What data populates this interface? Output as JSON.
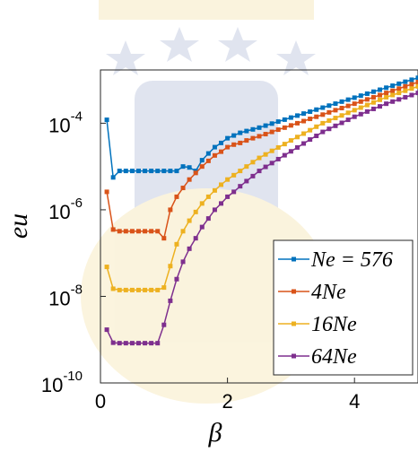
{
  "chart_data": {
    "type": "line",
    "yscale": "log",
    "xlabel": "β",
    "ylabel": "eu",
    "legend": "lower right",
    "xlim": [
      0,
      5
    ],
    "ylim": [
      1e-10,
      0.0017
    ],
    "xticks": [
      0,
      2,
      4
    ],
    "yticks": [
      {
        "value": 1e-10,
        "base": "10",
        "exponent": "-10"
      },
      {
        "value": 1e-08,
        "base": "10",
        "exponent": "-8"
      },
      {
        "value": 1e-06,
        "base": "10",
        "exponent": "-6"
      },
      {
        "value": 0.0001,
        "base": "10",
        "exponent": "-4"
      }
    ],
    "x": [
      0.1,
      0.2,
      0.3,
      0.4,
      0.5,
      0.6,
      0.7,
      0.8,
      0.9,
      1.0,
      1.1,
      1.2,
      1.3,
      1.4,
      1.5,
      1.6,
      1.7,
      1.8,
      1.9,
      2.0,
      2.1,
      2.2,
      2.3,
      2.4,
      2.5,
      2.6,
      2.7,
      2.8,
      2.9,
      3.0,
      3.1,
      3.2,
      3.3,
      3.4,
      3.5,
      3.6,
      3.7,
      3.8,
      3.9,
      4.0,
      4.1,
      4.2,
      4.3,
      4.4,
      4.5,
      4.6,
      4.7,
      4.8,
      4.9,
      5.0
    ],
    "series": [
      {
        "name": "Ne = 576",
        "color": "#0072BD",
        "values": [
          0.00012,
          5.6e-06,
          7.9e-06,
          7.9e-06,
          7.9e-06,
          7.9e-06,
          7.9e-06,
          7.9e-06,
          7.9e-06,
          7.9e-06,
          7.9e-06,
          7.9e-06,
          1e-05,
          9.5e-06,
          7.9e-06,
          1.4e-05,
          2e-05,
          2.8e-05,
          3.5e-05,
          4.5e-05,
          5.2e-05,
          6e-05,
          6.6e-05,
          7.2e-05,
          7.9e-05,
          8.8e-05,
          9.8e-05,
          0.000109,
          0.000121,
          0.000135,
          0.00015,
          0.000167,
          0.000185,
          0.000206,
          0.000229,
          0.000255,
          0.000283,
          0.000315,
          0.00035,
          0.000389,
          0.000433,
          0.000481,
          0.000535,
          0.000594,
          0.000661,
          0.000735,
          0.000817,
          0.000908,
          0.00101,
          0.00112
        ]
      },
      {
        "name": "4Ne",
        "color": "#D95319",
        "values": [
          2.6e-06,
          3.5e-07,
          3.2e-07,
          3.2e-07,
          3.2e-07,
          3.2e-07,
          3.2e-07,
          3.2e-07,
          3.2e-07,
          2.2e-07,
          1e-06,
          2e-06,
          3.2e-06,
          5e-06,
          7.1e-06,
          1e-05,
          1.35e-05,
          1.8e-05,
          2.2e-05,
          2.8e-05,
          3.2e-05,
          3.5e-05,
          4e-05,
          4.5e-05,
          5e-05,
          5.6e-05,
          6.3e-05,
          7.1e-05,
          7.9e-05,
          8.9e-05,
          0.0001,
          0.000112,
          0.000126,
          0.000141,
          0.000158,
          0.000178,
          0.0002,
          0.000224,
          0.000251,
          0.000282,
          0.000316,
          0.000355,
          0.000398,
          0.000447,
          0.000501,
          0.000562,
          0.000631,
          0.000708,
          0.000794,
          0.000891
        ]
      },
      {
        "name": "16Ne",
        "color": "#EDB120",
        "values": [
          4.8e-08,
          1.5e-08,
          1.4e-08,
          1.4e-08,
          1.4e-08,
          1.4e-08,
          1.4e-08,
          1.4e-08,
          1.4e-08,
          1.6e-08,
          5e-08,
          1.6e-07,
          3.2e-07,
          5.6e-07,
          8.9e-07,
          1.4e-06,
          2e-06,
          2.8e-06,
          3.8e-06,
          5e-06,
          6.3e-06,
          7.9e-06,
          1e-05,
          1.26e-05,
          1.58e-05,
          1.9e-05,
          2.3e-05,
          2.75e-05,
          3.3e-05,
          4e-05,
          4.8e-05,
          5.75e-05,
          6.9e-05,
          8.3e-05,
          0.0001,
          0.000115,
          0.000132,
          0.000151,
          0.000174,
          0.0002,
          0.000229,
          0.000263,
          0.000302,
          0.000347,
          0.000398,
          0.000447,
          0.000501,
          0.000562,
          0.000631,
          0.000708
        ]
      },
      {
        "name": "64Ne",
        "color": "#7E2F8E",
        "values": [
          1.7e-09,
          8.5e-10,
          8.3e-10,
          8.3e-10,
          8.3e-10,
          8.3e-10,
          8.3e-10,
          8.3e-10,
          8.3e-10,
          2.2e-09,
          7.9e-09,
          2.5e-08,
          6.3e-08,
          1.26e-07,
          2.2e-07,
          4e-07,
          6.3e-07,
          1e-06,
          1.4e-06,
          2e-06,
          2.6e-06,
          3.5e-06,
          4.6e-06,
          6e-06,
          7.9e-06,
          9.8e-06,
          1.2e-05,
          1.48e-05,
          1.82e-05,
          2.24e-05,
          2.75e-05,
          3.4e-05,
          4.2e-05,
          5.1e-05,
          6.3e-05,
          7.4e-05,
          8.7e-05,
          0.000102,
          0.00012,
          0.000141,
          0.000162,
          0.000186,
          0.000214,
          0.000245,
          0.000282,
          0.000316,
          0.000355,
          0.000398,
          0.000447,
          0.000501
        ]
      }
    ]
  }
}
